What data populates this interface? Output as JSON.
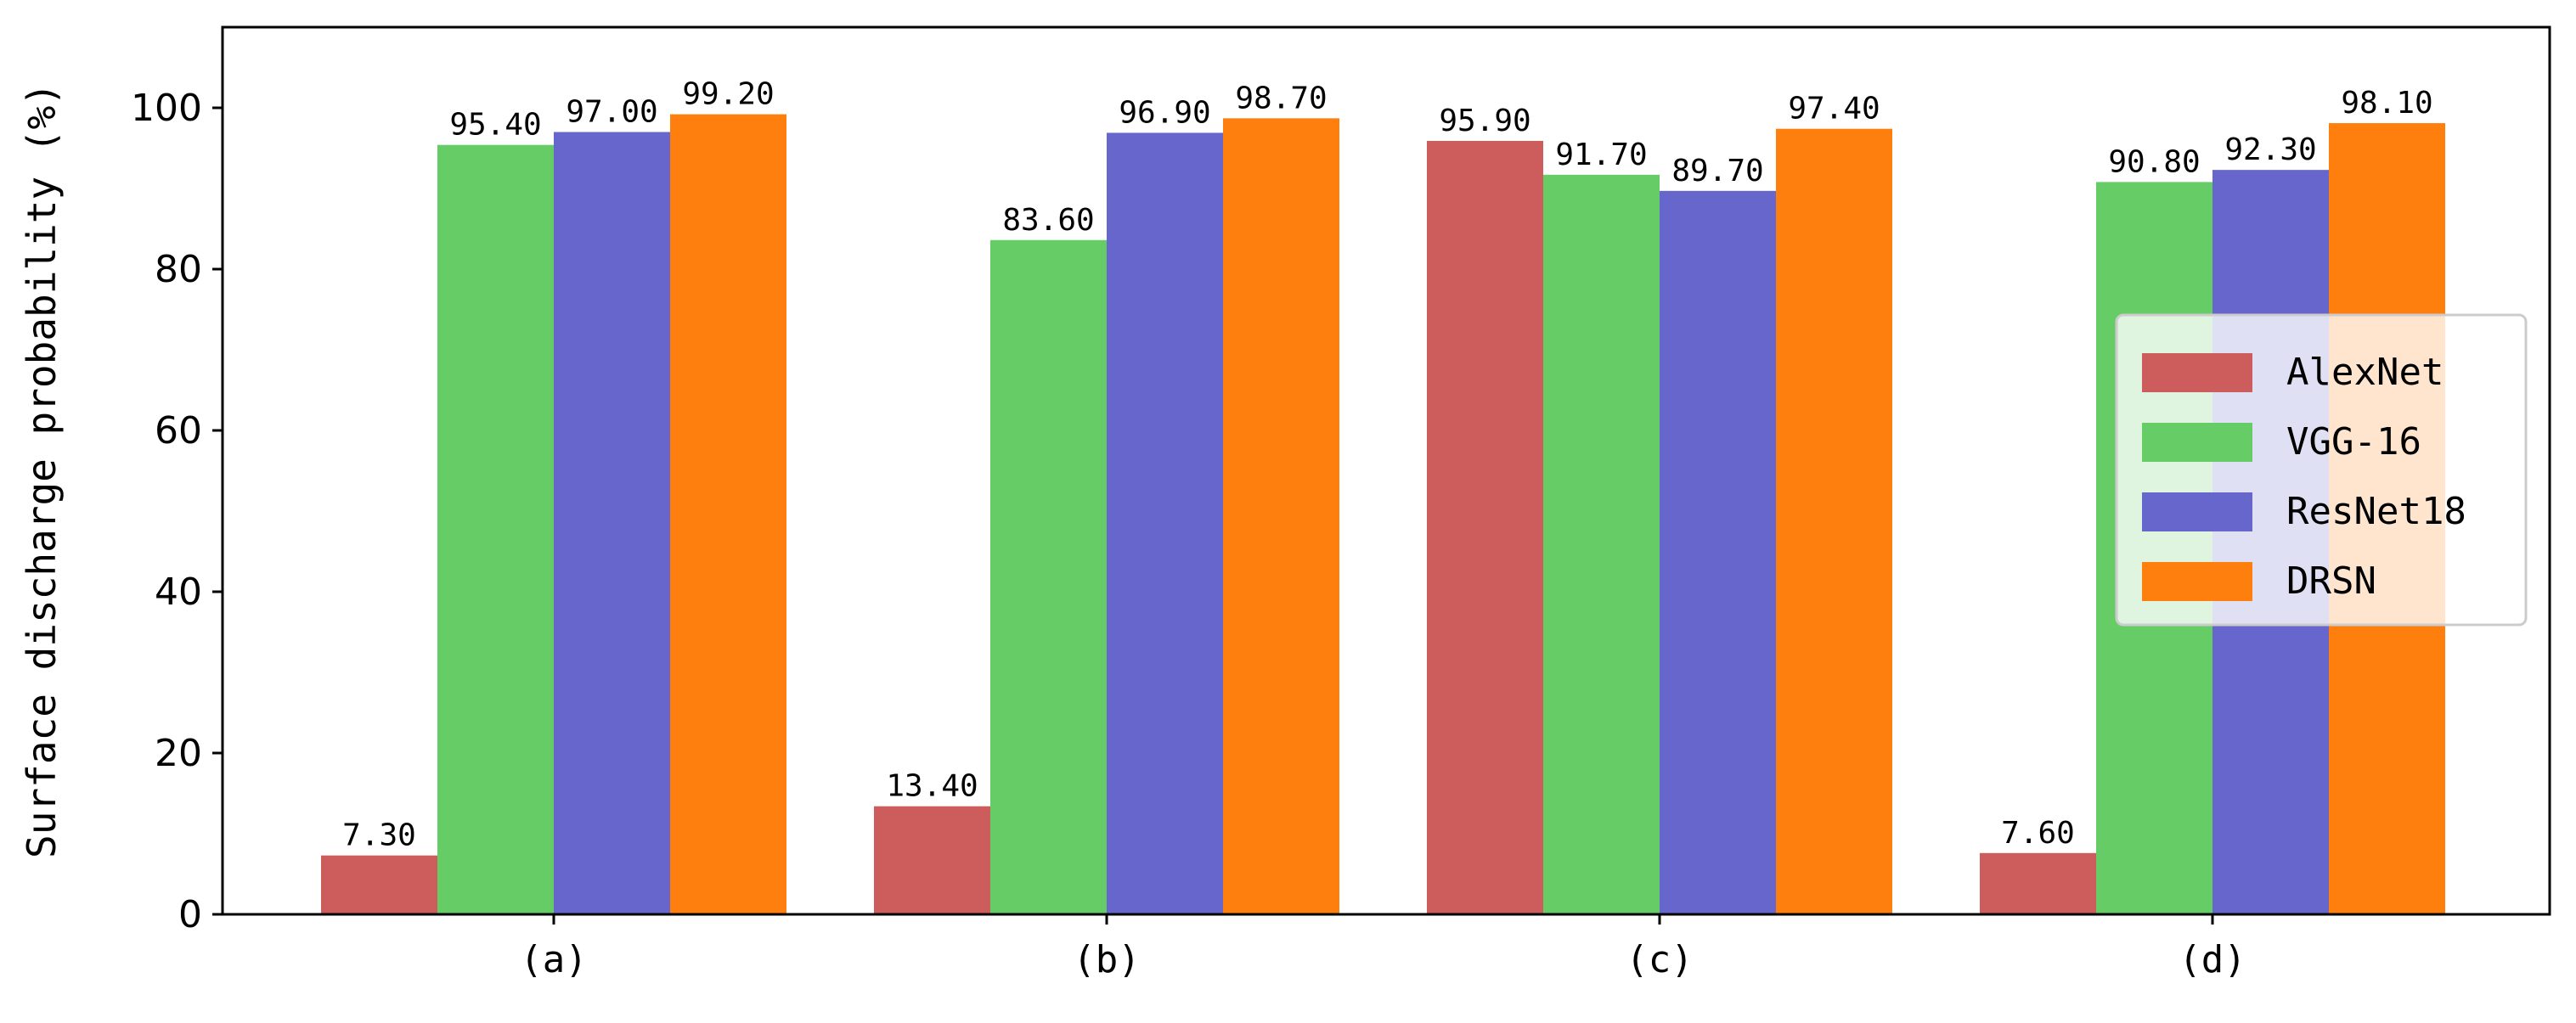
{
  "chart_data": {
    "type": "bar",
    "title": "",
    "xlabel": "",
    "ylabel": "Surface discharge probability (%)",
    "ylim": [
      0,
      110
    ],
    "yticks": [
      0,
      20,
      40,
      60,
      80,
      100
    ],
    "grid": false,
    "legend_position": "center-right",
    "categories": [
      "(a)",
      "(b)",
      "(c)",
      "(d)"
    ],
    "series": [
      {
        "name": "AlexNet",
        "color": "#cd5c5c",
        "values": [
          7.3,
          13.4,
          95.9,
          7.6
        ],
        "labels": [
          "7.30",
          "13.40",
          "95.90",
          "7.60"
        ]
      },
      {
        "name": "VGG-16",
        "color": "#66cc66",
        "values": [
          95.4,
          83.6,
          91.7,
          90.8
        ],
        "labels": [
          "95.40",
          "83.60",
          "91.70",
          "90.80"
        ]
      },
      {
        "name": "ResNet18",
        "color": "#6666cc",
        "values": [
          97.0,
          96.9,
          89.7,
          92.3
        ],
        "labels": [
          "97.00",
          "96.90",
          "89.70",
          "92.30"
        ]
      },
      {
        "name": "DRSN",
        "color": "#ff7f0e",
        "values": [
          99.2,
          98.7,
          97.4,
          98.1
        ],
        "labels": [
          "99.20",
          "98.70",
          "97.40",
          "98.10"
        ]
      }
    ]
  }
}
